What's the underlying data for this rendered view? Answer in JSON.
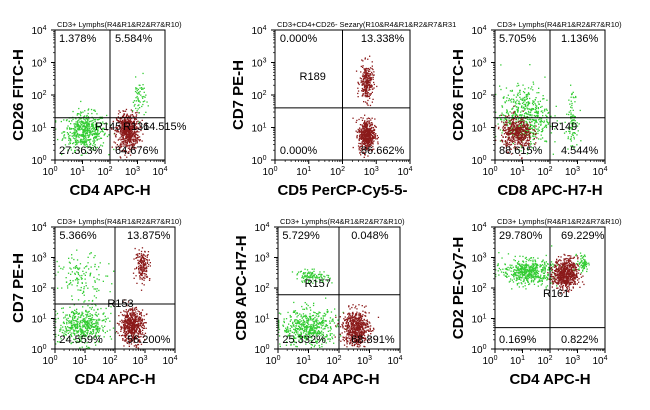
{
  "chart_data": [
    {
      "type": "scatter",
      "gate": "CD3+ Lymphs(R4&R1&R2&R7&R10)",
      "xlabel": "CD4 APC-H",
      "ylabel": "CD26 FITC-H",
      "xlim": [
        1,
        10000
      ],
      "ylim": [
        1,
        10000
      ],
      "xscale": "log",
      "yscale": "log",
      "quad_x": 100,
      "quad_y": 20,
      "quadrants": {
        "ul": "1.378%",
        "ur": "5.584%",
        "ll": "27.363%",
        "lr": "64.676%"
      },
      "region_labels": [
        "R145",
        "R131",
        "64.515%"
      ],
      "populations": [
        {
          "color": "#33cc33",
          "cx": 12,
          "cy": 8,
          "sx": 0.38,
          "sy": 0.28,
          "n": 520
        },
        {
          "color": "#8b1a1a",
          "cx": 420,
          "cy": 8,
          "sx": 0.2,
          "sy": 0.28,
          "n": 650
        },
        {
          "color": "#33cc33",
          "cx": 1100,
          "cy": 80,
          "sx": 0.12,
          "sy": 0.3,
          "n": 60
        }
      ]
    },
    {
      "type": "scatter",
      "gate": "CD3+CD4+CD26- Sezary(R10&R4&R1&R2&R7&R31",
      "xlabel": "CD5 PerCP-Cy5-5-",
      "ylabel": "CD7 PE-H",
      "xlim": [
        1,
        10000
      ],
      "ylim": [
        1,
        10000
      ],
      "xscale": "log",
      "yscale": "log",
      "quad_x": 100,
      "quad_y": 40,
      "quadrants": {
        "ul": "0.000%",
        "ur": "13.338%",
        "ll": "0.000%",
        "lr": "86.662%"
      },
      "region_labels": [
        "R189"
      ],
      "populations": [
        {
          "color": "#8b1a1a",
          "cx": 500,
          "cy": 250,
          "sx": 0.1,
          "sy": 0.28,
          "n": 260
        },
        {
          "color": "#8b1a1a",
          "cx": 500,
          "cy": 6,
          "sx": 0.12,
          "sy": 0.25,
          "n": 480
        }
      ]
    },
    {
      "type": "scatter",
      "gate": "CD3+ Lymphs(R4&R1&R2&R7&R10)",
      "xlabel": "CD8 APC-H7-H",
      "ylabel": "CD26 FITC-H",
      "xlim": [
        1,
        10000
      ],
      "ylim": [
        1,
        10000
      ],
      "xscale": "log",
      "yscale": "log",
      "quad_x": 100,
      "quad_y": 20,
      "quadrants": {
        "ul": "5.705%",
        "ur": "1.136%",
        "ll": "88.615%",
        "lr": "4.544%"
      },
      "region_labels": [
        "R149"
      ],
      "populations": [
        {
          "color": "#33cc33",
          "cx": 12,
          "cy": 22,
          "sx": 0.45,
          "sy": 0.45,
          "n": 520
        },
        {
          "color": "#8b1a1a",
          "cx": 6,
          "cy": 7,
          "sx": 0.28,
          "sy": 0.25,
          "n": 480
        },
        {
          "color": "#33cc33",
          "cx": 600,
          "cy": 20,
          "sx": 0.1,
          "sy": 0.4,
          "n": 90
        }
      ]
    },
    {
      "type": "scatter",
      "gate": "CD3+ Lymphs(R4&R1&R2&R7&R10)",
      "xlabel": "CD4 APC-H",
      "ylabel": "CD7 PE-H",
      "xlim": [
        1,
        10000
      ],
      "ylim": [
        1,
        10000
      ],
      "xscale": "log",
      "yscale": "log",
      "quad_x": 100,
      "quad_y": 30,
      "quadrants": {
        "ul": "5.366%",
        "ur": "13.875%",
        "ll": "24.559%",
        "lr": "56.200%"
      },
      "region_labels": [
        "R153"
      ],
      "populations": [
        {
          "color": "#33cc33",
          "cx": 8,
          "cy": 6,
          "sx": 0.4,
          "sy": 0.3,
          "n": 480
        },
        {
          "color": "#33cc33",
          "cx": 8,
          "cy": 250,
          "sx": 0.4,
          "sy": 0.35,
          "n": 130
        },
        {
          "color": "#8b1a1a",
          "cx": 350,
          "cy": 6,
          "sx": 0.2,
          "sy": 0.28,
          "n": 560
        },
        {
          "color": "#8b1a1a",
          "cx": 800,
          "cy": 600,
          "sx": 0.12,
          "sy": 0.25,
          "n": 170
        }
      ]
    },
    {
      "type": "scatter",
      "gate": "CD3+ Lymphs(R4&R1&R2&R7&R10)",
      "xlabel": "CD4 APC-H",
      "ylabel": "CD8 APC-H7-H",
      "xlim": [
        1,
        10000
      ],
      "ylim": [
        1,
        10000
      ],
      "xscale": "log",
      "yscale": "log",
      "quad_x": 100,
      "quad_y": 60,
      "quadrants": {
        "ul": "5.729%",
        "ur": "0.048%",
        "ll": "25.332%",
        "lr": "68.891%"
      },
      "region_labels": [
        "R157"
      ],
      "populations": [
        {
          "color": "#33cc33",
          "cx": 10,
          "cy": 5,
          "sx": 0.45,
          "sy": 0.3,
          "n": 520
        },
        {
          "color": "#33cc33",
          "cx": 12,
          "cy": 250,
          "sx": 0.28,
          "sy": 0.1,
          "n": 110
        },
        {
          "color": "#8b1a1a",
          "cx": 350,
          "cy": 5,
          "sx": 0.22,
          "sy": 0.3,
          "n": 600
        }
      ]
    },
    {
      "type": "scatter",
      "gate": "CD3+ Lymphs(R4&R1&R2&R7&R10)",
      "xlabel": "CD4 APC-H",
      "ylabel": "CD2 PE-Cy7-H",
      "xlim": [
        1,
        10000
      ],
      "ylim": [
        1,
        10000
      ],
      "xscale": "log",
      "yscale": "log",
      "quad_x": 100,
      "quad_y": 5,
      "quadrants": {
        "ul": "29.780%",
        "ur": "69.229%",
        "ll": "0.169%",
        "lr": "0.822%"
      },
      "region_labels": [
        "R161"
      ],
      "populations": [
        {
          "color": "#33cc33",
          "cx": 15,
          "cy": 350,
          "sx": 0.45,
          "sy": 0.2,
          "n": 520
        },
        {
          "color": "#8b1a1a",
          "cx": 350,
          "cy": 300,
          "sx": 0.22,
          "sy": 0.25,
          "n": 650
        },
        {
          "color": "#33cc33",
          "cx": 1500,
          "cy": 700,
          "sx": 0.1,
          "sy": 0.15,
          "n": 70
        }
      ]
    }
  ]
}
